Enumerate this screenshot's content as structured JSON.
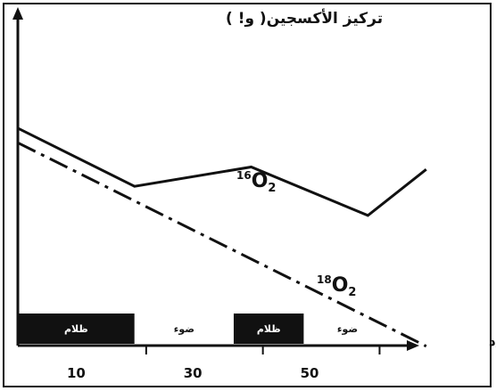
{
  "chart_data": {
    "type": "line",
    "ylabel": "تركيز الأكسجين( و! )",
    "xlabel": "الزمن/د",
    "x_ticks": [
      "10",
      "30",
      "50"
    ],
    "xlim": [
      0,
      70
    ],
    "ylim": [
      0,
      10
    ],
    "series": [
      {
        "name": "16O2",
        "name_base": "O",
        "name_isotope": "16",
        "name_subscript": "2",
        "style": "solid",
        "x": [
          0,
          20,
          40,
          60,
          70
        ],
        "y": [
          8.2,
          5.8,
          6.6,
          4.6,
          6.5
        ]
      },
      {
        "name": "18O2",
        "name_base": "O",
        "name_isotope": "18",
        "name_subscript": "2",
        "style": "dash-dot",
        "x": [
          0,
          70
        ],
        "y": [
          7.6,
          -0.8
        ]
      }
    ],
    "periods": [
      {
        "label": "ظلام",
        "start": 0,
        "end": 20,
        "fill": "#111111",
        "text_color": "#ffffff"
      },
      {
        "label": "ضوء",
        "start": 20,
        "end": 37,
        "fill": "#ffffff",
        "text_color": "#111111"
      },
      {
        "label": "ظلام",
        "start": 37,
        "end": 49,
        "fill": "#111111",
        "text_color": "#ffffff"
      },
      {
        "label": "ضوء",
        "start": 49,
        "end": 64,
        "fill": "#ffffff",
        "text_color": "#111111"
      }
    ],
    "grid": false,
    "legend": "inline"
  }
}
